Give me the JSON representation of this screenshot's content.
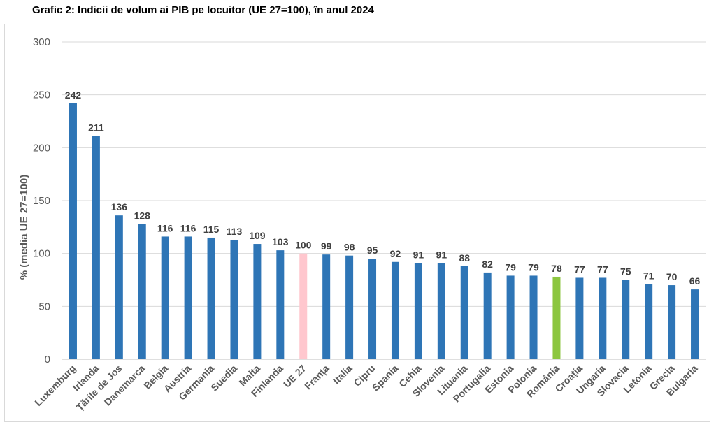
{
  "title": "Grafic 2: Indicii de volum ai PIB pe locuitor  (UE 27=100), în anul 2024",
  "chart_data": {
    "type": "bar",
    "title": "Grafic 2: Indicii de volum ai PIB pe locuitor  (UE 27=100), în anul 2024",
    "xlabel": "",
    "ylabel": "% (media UE 27=100)",
    "ylim": [
      0,
      300
    ],
    "yticks": [
      0,
      50,
      100,
      150,
      200,
      250,
      300
    ],
    "grid": true,
    "categories": [
      "Luxemburg",
      "Irlanda",
      "Țările de Jos",
      "Danemarca",
      "Belgia",
      "Austria",
      "Germania",
      "Suedia",
      "Malta",
      "Finlanda",
      "UE 27",
      "Franța",
      "Italia",
      "Cipru",
      "Spania",
      "Cehia",
      "Slovenia",
      "Lituania",
      "Portugalia",
      "Estonia",
      "Polonia",
      "România",
      "Croația",
      "Ungaria",
      "Slovacia",
      "Letonia",
      "Grecia",
      "Bulgaria"
    ],
    "values": [
      242,
      211,
      136,
      128,
      116,
      116,
      115,
      113,
      109,
      103,
      100,
      99,
      98,
      95,
      92,
      91,
      91,
      88,
      82,
      79,
      79,
      78,
      77,
      77,
      75,
      71,
      70,
      66
    ],
    "colors": {
      "default": "#2e75b6",
      "UE 27": "#ffc7ce",
      "România": "#8cc63f"
    }
  }
}
